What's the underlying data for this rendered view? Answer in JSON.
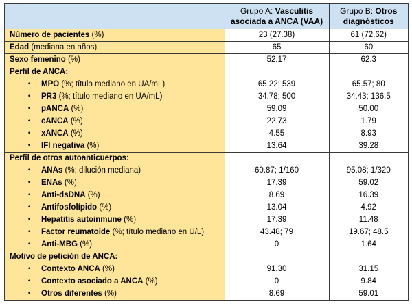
{
  "colors": {
    "header_bg": "#cde1f2",
    "label_bg": "#ffe599",
    "border": "#3a3a3a",
    "text": "#000000"
  },
  "table": {
    "corner_label": "",
    "columns": [
      {
        "prefix": "Grupo A: ",
        "emphasis": "Vasculitis asociada a ANCA (VAA)"
      },
      {
        "prefix": "Grupo B: ",
        "emphasis": "Otros diagnósticos"
      }
    ],
    "rows": [
      {
        "type": "simple",
        "bold": "Número de pacientes",
        "rest": " (%)",
        "a": "23 (27.38)",
        "b": "61 (72.62)"
      },
      {
        "type": "simple",
        "bold": "Edad",
        "rest": " (mediana en años)",
        "a": "65",
        "b": "60"
      },
      {
        "type": "simple",
        "bold": "Sexo femenino",
        "rest": " (%)",
        "a": "52.17",
        "b": "62.3"
      },
      {
        "type": "section",
        "bold": "Perfil de ANCA:",
        "rest": "",
        "a": "",
        "b": ""
      },
      {
        "type": "bullet",
        "bold": "MPO",
        "rest": " (%; título mediano en UA/mL)",
        "a": "65.22; 539",
        "b": "65.57; 80"
      },
      {
        "type": "bullet",
        "bold": "PR3",
        "rest": " (%; título mediano en UA/mL)",
        "a": "34.78; 500",
        "b": "34.43; 136.5"
      },
      {
        "type": "bullet",
        "bold": "pANCA",
        "rest": " (%)",
        "a": "59.09",
        "b": "50.00"
      },
      {
        "type": "bullet",
        "bold": "cANCA",
        "rest": " (%)",
        "a": "22.73",
        "b": "1.79"
      },
      {
        "type": "bullet",
        "bold": "xANCA",
        "rest": " (%)",
        "a": "4.55",
        "b": "8.93"
      },
      {
        "type": "bullet",
        "bold": "IFI negativa",
        "rest": " (%)",
        "a": "13.64",
        "b": "39.28"
      },
      {
        "type": "section",
        "bold": "Perfil de otros autoanticuerpos:",
        "rest": "",
        "a": "",
        "b": ""
      },
      {
        "type": "bullet",
        "bold": "ANAs",
        "rest": " (%; dilución mediana)",
        "a": "60.87; 1/160",
        "b": "95.08; 1/320"
      },
      {
        "type": "bullet",
        "bold": "ENAs",
        "rest": " (%)",
        "a": "17.39",
        "b": "59.02"
      },
      {
        "type": "bullet",
        "bold": "Anti-dsDNA",
        "rest": " (%)",
        "a": "8.69",
        "b": "16.39"
      },
      {
        "type": "bullet",
        "bold": "Antifosfolípido",
        "rest": " (%)",
        "a": "13.04",
        "b": "4.92"
      },
      {
        "type": "bullet",
        "bold": "Hepatitis autoinmune",
        "rest": " (%)",
        "a": "17.39",
        "b": "11.48"
      },
      {
        "type": "bullet",
        "bold": "Factor reumatoide",
        "rest": " (%; título mediano en U/L)",
        "a": "43.48; 79",
        "b": "19.67; 48.5"
      },
      {
        "type": "bullet",
        "bold": "Anti-MBG",
        "rest": " (%)",
        "a": "0",
        "b": "1.64"
      },
      {
        "type": "section",
        "bold": "Motivo de petición de ANCA:",
        "rest": "",
        "a": "",
        "b": ""
      },
      {
        "type": "bullet",
        "bold": "Contexto ANCA",
        "rest": " (%)",
        "a": "91.30",
        "b": "31.15"
      },
      {
        "type": "bullet",
        "bold": "Contexto asociado a ANCA",
        "rest": " (%)",
        "a": "0",
        "b": "9.84"
      },
      {
        "type": "bullet",
        "bold": "Otros diferentes",
        "rest": " (%)",
        "a": "8.69",
        "b": "59.01"
      }
    ]
  }
}
